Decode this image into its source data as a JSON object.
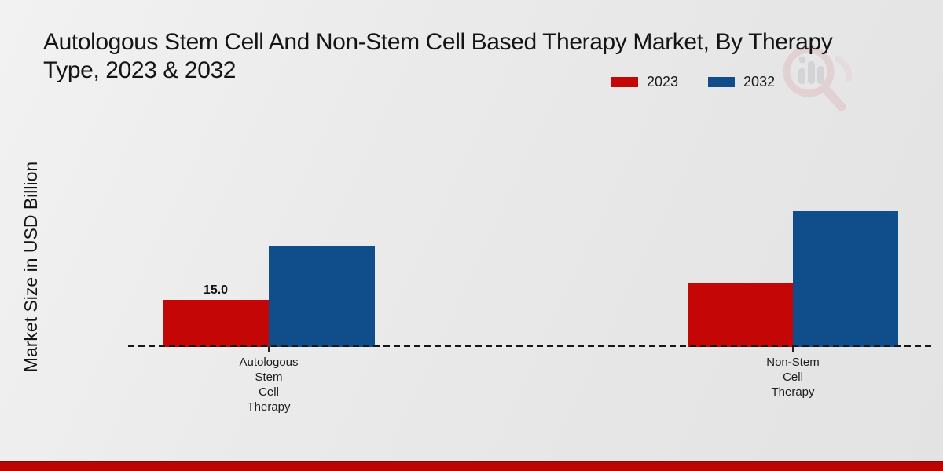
{
  "header": {
    "title_line1": "Autologous Stem Cell And Non-Stem Cell Based Therapy Market, By Therapy",
    "title_line2": "Type, 2023 & 2032"
  },
  "legend": {
    "items": [
      {
        "label": "2023",
        "color": "#c40606"
      },
      {
        "label": "2032",
        "color": "#0f4e8a"
      }
    ]
  },
  "watermark": {
    "ring_color": "#dfc0c2",
    "bars_color": "#c6c6ca"
  },
  "footer": {
    "bar_color": "#bd0404"
  },
  "chart_data": {
    "type": "bar",
    "title": "Autologous Stem Cell And Non-Stem Cell Based Therapy Market, By Therapy Type, 2023 & 2032",
    "ylabel": "Market Size in USD Billion",
    "categories": [
      [
        "Autologous",
        "Stem",
        "Cell",
        "Therapy"
      ],
      [
        "Non-Stem",
        "Cell",
        "Therapy"
      ]
    ],
    "series": [
      {
        "name": "2023",
        "color": "#c40606",
        "values": [
          15.0,
          20.3
        ],
        "value_labels": [
          "15.0",
          null
        ]
      },
      {
        "name": "2032",
        "color": "#0f4e8a",
        "values": [
          32.3,
          43.3
        ],
        "value_labels": [
          null,
          null
        ]
      }
    ],
    "ylim": [
      0,
      45
    ],
    "grid": false,
    "baseline_style": "dashed",
    "legend_position": "top-right"
  }
}
